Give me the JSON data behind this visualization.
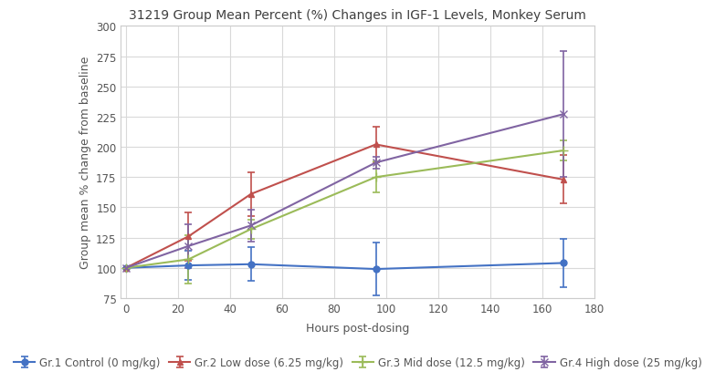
{
  "title": "31219 Group Mean Percent (%) Changes in IGF-1 Levels, Monkey Serum",
  "xlabel": "Hours post-dosing",
  "ylabel": "Group mean % change from baseline",
  "xlim": [
    -2,
    180
  ],
  "ylim": [
    75,
    300
  ],
  "xticks": [
    0,
    20,
    40,
    60,
    80,
    100,
    120,
    140,
    160,
    180
  ],
  "yticks": [
    75,
    100,
    125,
    150,
    175,
    200,
    225,
    250,
    275,
    300
  ],
  "series": [
    {
      "label": "Gr.1 Control (0 mg/kg)",
      "color": "#4472C4",
      "marker": "o",
      "markersize": 5,
      "x": [
        0,
        24,
        48,
        96,
        168
      ],
      "y": [
        100,
        102,
        103,
        99,
        104
      ],
      "yerr": [
        0,
        12,
        14,
        22,
        20
      ]
    },
    {
      "label": "Gr.2 Low dose (6.25 mg/kg)",
      "color": "#C0504D",
      "marker": "^",
      "markersize": 5,
      "x": [
        0,
        24,
        48,
        96,
        168
      ],
      "y": [
        100,
        126,
        161,
        202,
        173
      ],
      "yerr": [
        0,
        20,
        18,
        15,
        20
      ]
    },
    {
      "label": "Gr.3 Mid dose (12.5 mg/kg)",
      "color": "#9BBB59",
      "marker": "+",
      "markersize": 7,
      "x": [
        0,
        24,
        48,
        96,
        168
      ],
      "y": [
        100,
        107,
        132,
        175,
        197
      ],
      "yerr": [
        0,
        20,
        8,
        13,
        8
      ]
    },
    {
      "label": "Gr.4 High dose (25 mg/kg)",
      "color": "#8064A2",
      "marker": "x",
      "markersize": 6,
      "x": [
        0,
        24,
        48,
        96,
        168
      ],
      "y": [
        100,
        118,
        135,
        187,
        227
      ],
      "yerr": [
        0,
        18,
        13,
        5,
        52
      ]
    }
  ],
  "plot_bg_color": "#FFFFFF",
  "fig_bg_color": "#FFFFFF",
  "grid_color": "#D9D9D9",
  "title_fontsize": 10,
  "axis_label_fontsize": 9,
  "tick_fontsize": 8.5,
  "legend_fontsize": 8.5
}
